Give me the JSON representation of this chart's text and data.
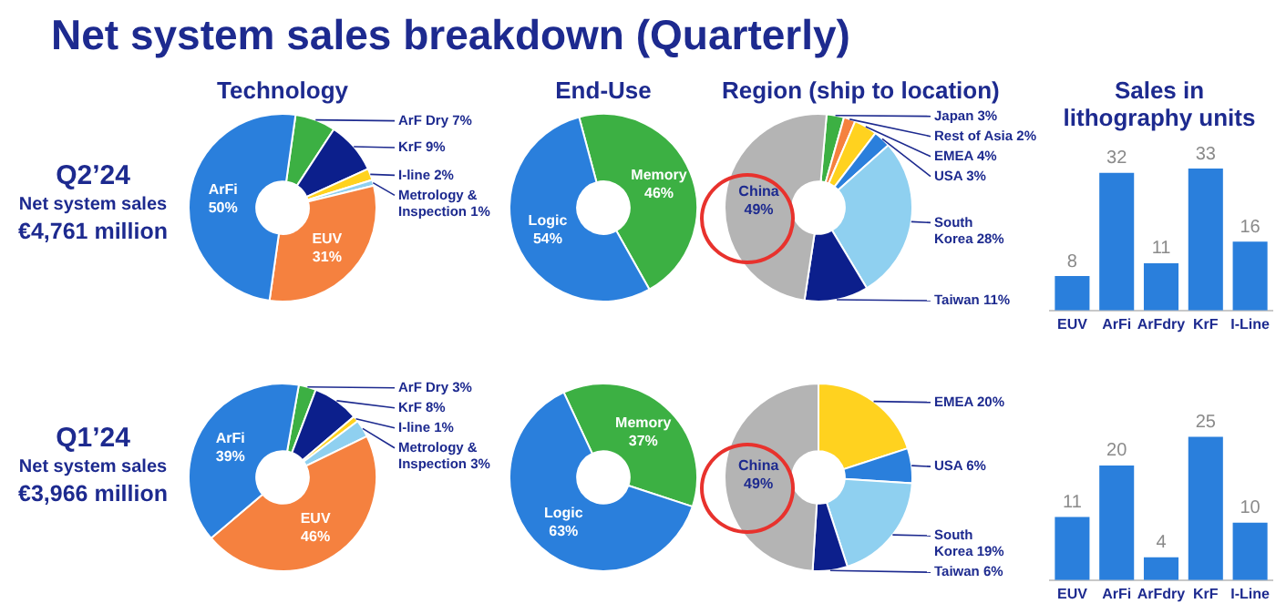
{
  "chart_data": [
    {
      "type": "other",
      "title": "Net system sales breakdown (Quarterly)"
    },
    {
      "type": "other",
      "title": "Q2’24",
      "annotations": [
        "Net system sales",
        "€4,761 million"
      ]
    },
    {
      "type": "donut",
      "title": "Technology",
      "categories": [
        "ArF Dry",
        "KrF",
        "I-line",
        "Metrology & Inspection",
        "EUV",
        "ArFi"
      ],
      "values": [
        7,
        9,
        2,
        1,
        31,
        50
      ],
      "value_labels": [
        "7%",
        "9%",
        "2%",
        "1%",
        "31%",
        "50%"
      ],
      "colors": [
        "#3cb043",
        "#0c1f8c",
        "#ffd21f",
        "#8fd0f0",
        "#f5813f",
        "#2a7fdc"
      ],
      "legend": false
    },
    {
      "type": "donut",
      "title": "End-Use",
      "categories": [
        "Memory",
        "Logic"
      ],
      "values": [
        46,
        54
      ],
      "value_labels": [
        "46%",
        "54%"
      ],
      "colors": [
        "#3cb043",
        "#2a7fdc"
      ],
      "legend": false
    },
    {
      "type": "donut",
      "title": "Region (ship to location)",
      "categories": [
        "Japan",
        "Rest of Asia",
        "EMEA",
        "USA",
        "South Korea",
        "Taiwan",
        "China"
      ],
      "values": [
        3,
        2,
        4,
        3,
        28,
        11,
        49
      ],
      "value_labels": [
        "3%",
        "2%",
        "4%",
        "3%",
        "28%",
        "11%",
        "49%"
      ],
      "colors": [
        "#3cb043",
        "#f5813f",
        "#ffd21f",
        "#2a7fdc",
        "#8fd0f0",
        "#0c1f8c",
        "#b4b4b4"
      ],
      "legend": false
    },
    {
      "type": "bar",
      "title": "Sales in lithography units",
      "categories": [
        "EUV",
        "ArFi",
        "ArFdry",
        "KrF",
        "I-Line"
      ],
      "values": [
        8,
        32,
        11,
        33,
        16
      ],
      "color": "#2a7fdc",
      "data_labels": true,
      "tick_labels": "x",
      "grid": false,
      "legend": false
    },
    {
      "type": "other",
      "title": "Q1’24",
      "annotations": [
        "Net system sales",
        "€3,966 million"
      ]
    },
    {
      "type": "donut",
      "categories": [
        "ArF Dry",
        "KrF",
        "I-line",
        "Metrology & Inspection",
        "EUV",
        "ArFi"
      ],
      "values": [
        3,
        8,
        1,
        3,
        46,
        39
      ],
      "value_labels": [
        "3%",
        "8%",
        "1%",
        "3%",
        "46%",
        "39%"
      ],
      "colors": [
        "#3cb043",
        "#0c1f8c",
        "#ffd21f",
        "#8fd0f0",
        "#f5813f",
        "#2a7fdc"
      ],
      "legend": false
    },
    {
      "type": "donut",
      "categories": [
        "Memory",
        "Logic"
      ],
      "values": [
        37,
        63
      ],
      "value_labels": [
        "37%",
        "63%"
      ],
      "colors": [
        "#3cb043",
        "#2a7fdc"
      ],
      "legend": false
    },
    {
      "type": "donut",
      "categories": [
        "EMEA",
        "USA",
        "South Korea",
        "Taiwan",
        "China"
      ],
      "values": [
        20,
        6,
        19,
        6,
        49
      ],
      "value_labels": [
        "20%",
        "6%",
        "19%",
        "6%",
        "49%"
      ],
      "colors": [
        "#ffd21f",
        "#2a7fdc",
        "#8fd0f0",
        "#0c1f8c",
        "#b4b4b4"
      ],
      "legend": false
    },
    {
      "type": "bar",
      "categories": [
        "EUV",
        "ArFi",
        "ArFdry",
        "KrF",
        "I-Line"
      ],
      "values": [
        11,
        20,
        4,
        25,
        10
      ],
      "color": "#2a7fdc",
      "data_labels": true,
      "tick_labels": "x",
      "grid": false,
      "legend": false
    }
  ]
}
